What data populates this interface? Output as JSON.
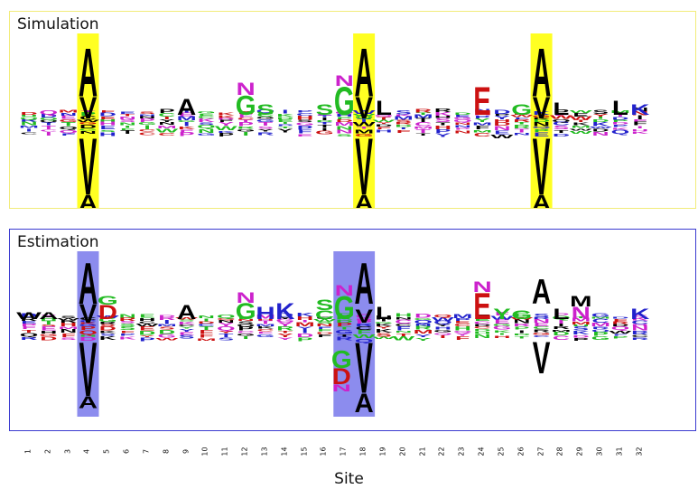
{
  "panels": [
    {
      "title": "Simulation",
      "frame_color": "#f2ec7a",
      "highlight_color": "#ffff22",
      "highlight_sites": [
        4,
        18,
        27
      ],
      "tall_letters": [
        {
          "site": 4,
          "letter": "A",
          "side": "up",
          "scale": 1.0
        },
        {
          "site": 4,
          "letter": "V",
          "side": "up",
          "scale": 0.55
        },
        {
          "site": 4,
          "letter": "V",
          "side": "down",
          "scale": 0.85
        },
        {
          "site": 4,
          "letter": "A",
          "side": "down",
          "scale": 0.3
        },
        {
          "site": 18,
          "letter": "A",
          "side": "up",
          "scale": 1.0
        },
        {
          "site": 18,
          "letter": "V",
          "side": "up",
          "scale": 0.55
        },
        {
          "site": 18,
          "letter": "V",
          "side": "down",
          "scale": 0.85
        },
        {
          "site": 18,
          "letter": "A",
          "side": "down",
          "scale": 0.3
        },
        {
          "site": 27,
          "letter": "A",
          "side": "up",
          "scale": 1.0
        },
        {
          "site": 27,
          "letter": "V",
          "side": "up",
          "scale": 0.55
        },
        {
          "site": 27,
          "letter": "V",
          "side": "down",
          "scale": 0.85
        },
        {
          "site": 27,
          "letter": "A",
          "side": "down",
          "scale": 0.3
        }
      ],
      "small_letters": [
        {
          "site": 9,
          "letter": "A",
          "color": "#000000",
          "size": 0.45
        },
        {
          "site": 12,
          "letter": "G",
          "color": "#22bb22",
          "size": 0.55
        },
        {
          "site": 12,
          "letter": "N",
          "color": "#cc22cc",
          "size": 0.35
        },
        {
          "site": 13,
          "letter": "S",
          "color": "#22bb22",
          "size": 0.3
        },
        {
          "site": 16,
          "letter": "S",
          "color": "#22bb22",
          "size": 0.3
        },
        {
          "site": 17,
          "letter": "G",
          "color": "#22bb22",
          "size": 0.8
        },
        {
          "site": 17,
          "letter": "N",
          "color": "#cc22cc",
          "size": 0.3
        },
        {
          "site": 19,
          "letter": "L",
          "color": "#000000",
          "size": 0.4
        },
        {
          "site": 24,
          "letter": "E",
          "color": "#cc1111",
          "size": 0.8
        },
        {
          "site": 26,
          "letter": "G",
          "color": "#22bb22",
          "size": 0.3
        },
        {
          "site": 28,
          "letter": "L",
          "color": "#000000",
          "size": 0.35
        },
        {
          "site": 31,
          "letter": "L",
          "color": "#000000",
          "size": 0.4
        },
        {
          "site": 32,
          "letter": "K",
          "color": "#2222cc",
          "size": 0.3
        }
      ]
    },
    {
      "title": "Estimation",
      "frame_color": "#3b3bd0",
      "highlight_color": "#8c8cee",
      "highlight_sites": [
        4,
        17,
        18
      ],
      "tall_letters": [
        {
          "site": 4,
          "letter": "A",
          "side": "up",
          "scale": 1.0
        },
        {
          "site": 4,
          "letter": "V",
          "side": "up",
          "scale": 0.55
        },
        {
          "site": 4,
          "letter": "V",
          "side": "down",
          "scale": 0.85
        },
        {
          "site": 4,
          "letter": "A",
          "side": "down",
          "scale": 0.25
        },
        {
          "site": 18,
          "letter": "A",
          "side": "up",
          "scale": 1.0
        },
        {
          "site": 18,
          "letter": "V",
          "side": "up",
          "scale": 0.4
        },
        {
          "site": 18,
          "letter": "V",
          "side": "down",
          "scale": 0.8
        },
        {
          "site": 18,
          "letter": "A",
          "side": "down",
          "scale": 0.4
        },
        {
          "site": 27,
          "letter": "A",
          "side": "up",
          "scale": 0.6
        },
        {
          "site": 27,
          "letter": "V",
          "side": "down",
          "scale": 0.5
        }
      ],
      "small_letters": [
        {
          "site": 1,
          "letter": "W",
          "color": "#000000",
          "size": 0.2
        },
        {
          "site": 2,
          "letter": "A",
          "color": "#000000",
          "size": 0.2
        },
        {
          "site": 5,
          "letter": "D",
          "color": "#cc1111",
          "size": 0.4
        },
        {
          "site": 5,
          "letter": "G",
          "color": "#22bb22",
          "size": 0.25
        },
        {
          "site": 9,
          "letter": "A",
          "color": "#000000",
          "size": 0.4
        },
        {
          "site": 12,
          "letter": "G",
          "color": "#22bb22",
          "size": 0.45
        },
        {
          "site": 12,
          "letter": "N",
          "color": "#cc22cc",
          "size": 0.3
        },
        {
          "site": 13,
          "letter": "H",
          "color": "#2222cc",
          "size": 0.35
        },
        {
          "site": 14,
          "letter": "K",
          "color": "#2222cc",
          "size": 0.45
        },
        {
          "site": 16,
          "letter": "C",
          "color": "#22bb22",
          "size": 0.25
        },
        {
          "site": 16,
          "letter": "S",
          "color": "#22bb22",
          "size": 0.3
        },
        {
          "site": 17,
          "letter": "G",
          "color": "#22bb22",
          "size": 0.65
        },
        {
          "site": 17,
          "letter": "N",
          "color": "#cc22cc",
          "size": 0.3
        },
        {
          "site": 19,
          "letter": "L",
          "color": "#000000",
          "size": 0.35
        },
        {
          "site": 24,
          "letter": "E",
          "color": "#cc1111",
          "size": 0.75
        },
        {
          "site": 24,
          "letter": "N",
          "color": "#cc22cc",
          "size": 0.3
        },
        {
          "site": 25,
          "letter": "Y",
          "color": "#22bb22",
          "size": 0.3
        },
        {
          "site": 26,
          "letter": "G",
          "color": "#22bb22",
          "size": 0.25
        },
        {
          "site": 28,
          "letter": "L",
          "color": "#000000",
          "size": 0.3
        },
        {
          "site": 29,
          "letter": "N",
          "color": "#cc22cc",
          "size": 0.35
        },
        {
          "site": 29,
          "letter": "M",
          "color": "#000000",
          "size": 0.3
        },
        {
          "site": 32,
          "letter": "K",
          "color": "#2222cc",
          "size": 0.3
        }
      ],
      "low_letters": [
        {
          "site": 17,
          "letter": "G",
          "color": "#22bb22",
          "size": 0.5
        },
        {
          "site": 17,
          "letter": "D",
          "color": "#cc1111",
          "size": 0.45
        },
        {
          "site": 17,
          "letter": "N",
          "color": "#cc22cc",
          "size": 0.2
        }
      ]
    }
  ],
  "x_axis": {
    "title": "Site",
    "ticks": [
      "1",
      "2",
      "3",
      "4",
      "5",
      "6",
      "7",
      "8",
      "9",
      "10",
      "11",
      "12",
      "13",
      "14",
      "15",
      "16",
      "17",
      "18",
      "19",
      "20",
      "21",
      "22",
      "23",
      "24",
      "25",
      "26",
      "27",
      "28",
      "29",
      "30",
      "31",
      "32"
    ]
  },
  "noise_colors": [
    "#2222cc",
    "#cc22cc",
    "#22bb22",
    "#cc1111",
    "#000000"
  ]
}
